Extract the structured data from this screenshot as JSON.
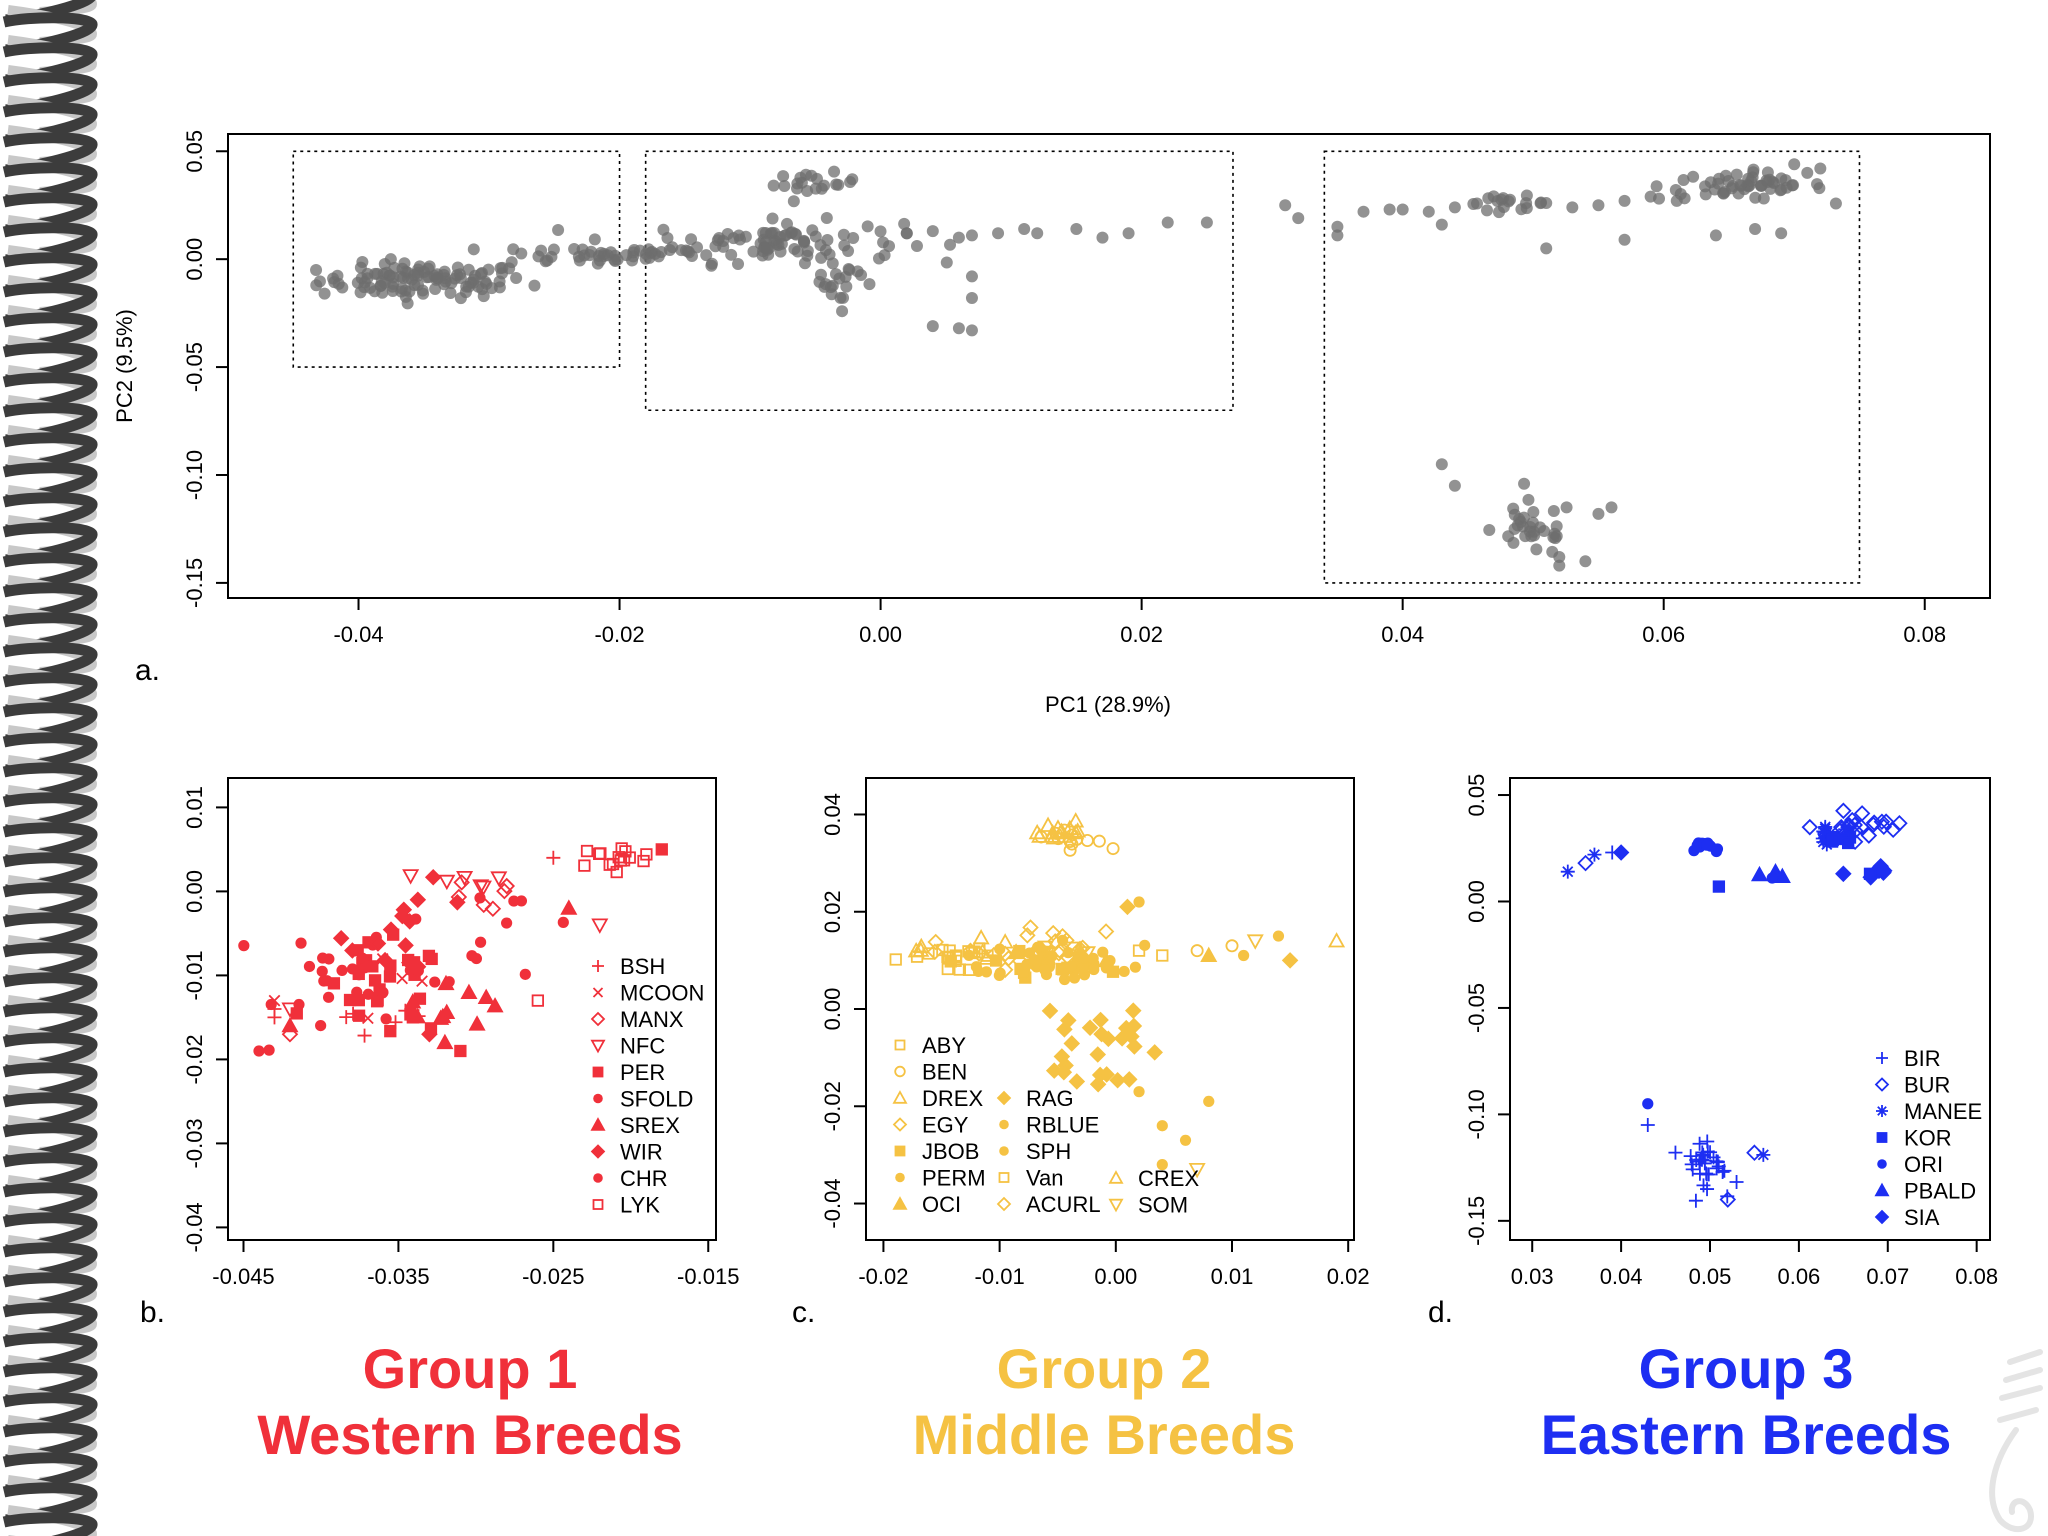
{
  "colors": {
    "grey": "#6e6e6e",
    "red": "#f0303a",
    "yellow": "#f5c243",
    "blue": "#1d2ef2",
    "helix_dark": "#3c3c3c",
    "helix_light": "#c8c8c8"
  },
  "chart_data": [
    {
      "id": "a",
      "type": "scatter",
      "panel_label": "a.",
      "xlabel": "PC1 (28.9%)",
      "ylabel": "PC2 (9.5%)",
      "xlim": [
        -0.05,
        0.085
      ],
      "ylim": [
        -0.157,
        0.058
      ],
      "xticks": [
        "-0.04",
        "-0.02",
        "0.00",
        "0.02",
        "0.04",
        "0.06",
        "0.08"
      ],
      "yticks": [
        "0.05",
        "0.00",
        "-0.05",
        "-0.10",
        "-0.15"
      ],
      "dotted_boxes": [
        {
          "x": [
            -0.045,
            -0.02
          ],
          "y": [
            -0.05,
            0.05
          ]
        },
        {
          "x": [
            -0.018,
            0.027
          ],
          "y": [
            -0.07,
            0.05
          ]
        },
        {
          "x": [
            0.034,
            0.075
          ],
          "y": [
            -0.15,
            0.05
          ]
        }
      ],
      "clusters": [
        {
          "center": [
            -0.035,
            -0.01
          ],
          "spread": [
            0.005,
            0.005
          ],
          "n": 110
        },
        {
          "center": [
            -0.022,
            0.002
          ],
          "spread": [
            0.005,
            0.003
          ],
          "n": 45
        },
        {
          "center": [
            -0.008,
            0.008
          ],
          "spread": [
            0.006,
            0.006
          ],
          "n": 90
        },
        {
          "center": [
            -0.005,
            0.035
          ],
          "spread": [
            0.002,
            0.003
          ],
          "n": 20
        },
        {
          "center": [
            -0.003,
            -0.01
          ],
          "spread": [
            0.002,
            0.008
          ],
          "n": 20
        },
        {
          "center": [
            0.048,
            0.026
          ],
          "spread": [
            0.002,
            0.002
          ],
          "n": 18
        },
        {
          "center": [
            0.066,
            0.034
          ],
          "spread": [
            0.004,
            0.004
          ],
          "n": 55
        },
        {
          "center": [
            0.05,
            -0.125
          ],
          "spread": [
            0.002,
            0.008
          ],
          "n": 32
        }
      ],
      "points": [
        [
          0.002,
          0.012
        ],
        [
          0.004,
          0.013
        ],
        [
          0.006,
          0.01
        ],
        [
          0.007,
          0.011
        ],
        [
          0.009,
          0.012
        ],
        [
          0.011,
          0.014
        ],
        [
          0.012,
          0.012
        ],
        [
          0.015,
          0.014
        ],
        [
          0.017,
          0.01
        ],
        [
          0.019,
          0.012
        ],
        [
          0.022,
          0.017
        ],
        [
          0.025,
          0.017
        ],
        [
          0.031,
          0.025
        ],
        [
          0.032,
          0.019
        ],
        [
          0.035,
          0.015
        ],
        [
          0.037,
          0.022
        ],
        [
          0.039,
          0.023
        ],
        [
          0.04,
          0.023
        ],
        [
          0.042,
          0.022
        ],
        [
          0.044,
          0.024
        ],
        [
          0.051,
          0.026
        ],
        [
          0.053,
          0.024
        ],
        [
          0.055,
          0.025
        ],
        [
          0.057,
          0.027
        ],
        [
          0.059,
          0.029
        ],
        [
          0.061,
          0.027
        ],
        [
          0.035,
          0.011
        ],
        [
          0.043,
          0.016
        ],
        [
          0.051,
          0.005
        ],
        [
          0.057,
          0.009
        ],
        [
          0.064,
          0.011
        ],
        [
          0.067,
          0.014
        ],
        [
          0.069,
          0.012
        ],
        [
          0.007,
          -0.008
        ],
        [
          0.007,
          -0.018
        ],
        [
          0.007,
          -0.033
        ],
        [
          0.004,
          -0.031
        ],
        [
          0.006,
          -0.032
        ],
        [
          0.043,
          -0.095
        ],
        [
          0.044,
          -0.105
        ],
        [
          0.052,
          -0.138
        ],
        [
          0.052,
          -0.142
        ],
        [
          0.054,
          -0.14
        ],
        [
          0.055,
          -0.118
        ],
        [
          0.056,
          -0.115
        ],
        [
          0.071,
          0.04
        ],
        [
          0.072,
          0.042
        ],
        [
          0.07,
          0.044
        ]
      ]
    },
    {
      "id": "b",
      "type": "scatter",
      "panel_label": "b.",
      "xlim": [
        -0.046,
        -0.0145
      ],
      "ylim": [
        -0.0415,
        0.0135
      ],
      "xticks": [
        "-0.045",
        "-0.035",
        "-0.025",
        "-0.015"
      ],
      "yticks": [
        "0.01",
        "0.00",
        "-0.01",
        "-0.02",
        "-0.03",
        "-0.04"
      ],
      "legend": [
        "BSH",
        "MCOON",
        "MANX",
        "NFC",
        "PER",
        "SFOLD",
        "SREX",
        "WIR",
        "CHR",
        "LYK"
      ],
      "series": [
        {
          "name": "BSH",
          "marker": "plus",
          "center": [
            -0.037,
            -0.016
          ],
          "spread": [
            0.003,
            0.002
          ],
          "n": 6
        },
        {
          "name": "MCOON",
          "marker": "x",
          "center": [
            -0.035,
            -0.012
          ],
          "spread": [
            0.003,
            0.003
          ],
          "n": 5
        },
        {
          "name": "MANX",
          "marker": "diamond-open",
          "center": [
            -0.029,
            -0.001
          ],
          "spread": [
            0.002,
            0.002
          ],
          "n": 6
        },
        {
          "name": "NFC",
          "marker": "tri-down-open",
          "center": [
            -0.032,
            0.001
          ],
          "spread": [
            0.004,
            0.002
          ],
          "n": 6
        },
        {
          "name": "PER",
          "marker": "square",
          "center": [
            -0.036,
            -0.012
          ],
          "spread": [
            0.003,
            0.004
          ],
          "n": 28
        },
        {
          "name": "SFOLD",
          "marker": "circle",
          "center": [
            -0.037,
            -0.01
          ],
          "spread": [
            0.004,
            0.005
          ],
          "n": 30
        },
        {
          "name": "SREX",
          "marker": "triangle",
          "center": [
            -0.032,
            -0.012
          ],
          "spread": [
            0.003,
            0.003
          ],
          "n": 10
        },
        {
          "name": "WIR",
          "marker": "diamond",
          "center": [
            -0.034,
            -0.005
          ],
          "spread": [
            0.003,
            0.004
          ],
          "n": 14
        },
        {
          "name": "CHR",
          "marker": "circle",
          "center": [
            -0.028,
            -0.005
          ],
          "spread": [
            0.004,
            0.004
          ],
          "n": 10
        },
        {
          "name": "LYK",
          "marker": "square-open",
          "center": [
            -0.021,
            0.004
          ],
          "spread": [
            0.002,
            0.001
          ],
          "n": 15
        }
      ],
      "points": [
        [
          -0.044,
          -0.019
        ],
        [
          -0.043,
          -0.015
        ],
        [
          -0.043,
          -0.014
        ],
        [
          -0.042,
          -0.014
        ],
        [
          -0.042,
          -0.016
        ],
        [
          -0.043,
          -0.013
        ],
        [
          -0.042,
          -0.017
        ],
        [
          -0.026,
          -0.013
        ],
        [
          -0.022,
          -0.004
        ],
        [
          -0.024,
          -0.002
        ],
        [
          -0.025,
          0.004
        ],
        [
          -0.018,
          0.005
        ],
        [
          -0.031,
          -0.019
        ],
        [
          -0.032,
          -0.018
        ],
        [
          -0.033,
          -0.017
        ]
      ]
    },
    {
      "id": "c",
      "type": "scatter",
      "panel_label": "c.",
      "xlim": [
        -0.0215,
        0.0205
      ],
      "ylim": [
        -0.0475,
        0.0475
      ],
      "xticks": [
        "-0.02",
        "-0.01",
        "0.00",
        "0.01",
        "0.02"
      ],
      "yticks": [
        "0.04",
        "0.02",
        "0.00",
        "-0.02",
        "-0.04"
      ],
      "legend_col1": [
        "ABY",
        "BEN",
        "DREX",
        "EGY",
        "JBOB",
        "PERM",
        "OCI"
      ],
      "legend_col2": [
        "RAG",
        "RBLUE",
        "SPH",
        "Van",
        "ACURL"
      ],
      "legend_col3": [
        "CREX",
        "SOM"
      ],
      "series": [
        {
          "name": "ABY",
          "marker": "square-open",
          "center": [
            -0.014,
            0.011
          ],
          "spread": [
            0.004,
            0.002
          ],
          "n": 10
        },
        {
          "name": "BEN",
          "marker": "circle-open",
          "center": [
            -0.004,
            0.035
          ],
          "spread": [
            0.002,
            0.002
          ],
          "n": 12
        },
        {
          "name": "DREX",
          "marker": "triangle-open",
          "center": [
            -0.005,
            0.036
          ],
          "spread": [
            0.002,
            0.002
          ],
          "n": 14
        },
        {
          "name": "EGY",
          "marker": "diamond-open",
          "center": [
            -0.01,
            0.011
          ],
          "spread": [
            0.004,
            0.002
          ],
          "n": 12
        },
        {
          "name": "JBOB",
          "marker": "square",
          "center": [
            -0.008,
            0.009
          ],
          "spread": [
            0.005,
            0.002
          ],
          "n": 10
        },
        {
          "name": "PERM",
          "marker": "circle",
          "center": [
            -0.006,
            0.01
          ],
          "spread": [
            0.005,
            0.003
          ],
          "n": 16
        },
        {
          "name": "OCI",
          "marker": "triangle",
          "center": [
            -0.003,
            0.011
          ],
          "spread": [
            0.004,
            0.002
          ],
          "n": 8
        },
        {
          "name": "RAG",
          "marker": "diamond",
          "center": [
            -0.002,
            -0.008
          ],
          "spread": [
            0.003,
            0.007
          ],
          "n": 26
        },
        {
          "name": "RBLUE",
          "marker": "circle",
          "center": [
            -0.004,
            0.01
          ],
          "spread": [
            0.004,
            0.003
          ],
          "n": 16
        },
        {
          "name": "SPH",
          "marker": "circle",
          "center": [
            -0.008,
            0.009
          ],
          "spread": [
            0.005,
            0.002
          ],
          "n": 14
        },
        {
          "name": "Van",
          "marker": "square-open",
          "center": [
            -0.012,
            0.01
          ],
          "spread": [
            0.003,
            0.002
          ],
          "n": 8
        },
        {
          "name": "ACURL",
          "marker": "diamond-open",
          "center": [
            -0.006,
            0.013
          ],
          "spread": [
            0.004,
            0.003
          ],
          "n": 10
        },
        {
          "name": "CREX",
          "marker": "triangle-open",
          "center": [
            -0.013,
            0.012
          ],
          "spread": [
            0.003,
            0.002
          ],
          "n": 8
        },
        {
          "name": "SOM",
          "marker": "tri-down-open",
          "center": [
            -0.006,
            0.012
          ],
          "spread": [
            0.004,
            0.002
          ],
          "n": 8
        }
      ],
      "points": [
        [
          0.001,
          0.021
        ],
        [
          0.002,
          0.022
        ],
        [
          0.002,
          0.012
        ],
        [
          0.004,
          0.011
        ],
        [
          0.007,
          0.012
        ],
        [
          0.008,
          0.011
        ],
        [
          0.01,
          0.013
        ],
        [
          0.011,
          0.011
        ],
        [
          0.012,
          0.014
        ],
        [
          0.015,
          0.01
        ],
        [
          0.014,
          0.015
        ],
        [
          0.019,
          0.014
        ],
        [
          0.002,
          -0.017
        ],
        [
          0.004,
          -0.024
        ],
        [
          0.006,
          -0.027
        ],
        [
          0.004,
          -0.032
        ],
        [
          0.007,
          -0.033
        ],
        [
          0.008,
          -0.019
        ]
      ]
    },
    {
      "id": "d",
      "type": "scatter",
      "panel_label": "d.",
      "xlim": [
        0.0275,
        0.0815
      ],
      "ylim": [
        -0.159,
        0.058
      ],
      "xticks": [
        "0.03",
        "0.04",
        "0.05",
        "0.06",
        "0.07",
        "0.08"
      ],
      "yticks": [
        "0.05",
        "0.00",
        "-0.05",
        "-0.10",
        "-0.15"
      ],
      "legend": [
        "BIR",
        "BUR",
        "MANEE",
        "KOR",
        "ORI",
        "PBALD",
        "SIA"
      ],
      "series": [
        {
          "name": "BIR",
          "marker": "plus",
          "center": [
            0.05,
            -0.124
          ],
          "spread": [
            0.002,
            0.007
          ],
          "n": 34
        },
        {
          "name": "BUR",
          "marker": "diamond-open",
          "center": [
            0.067,
            0.036
          ],
          "spread": [
            0.003,
            0.004
          ],
          "n": 24
        },
        {
          "name": "MANEE",
          "marker": "asterisk",
          "center": [
            0.062,
            0.031
          ],
          "spread": [
            0.003,
            0.003
          ],
          "n": 10
        },
        {
          "name": "KOR",
          "marker": "square",
          "center": [
            0.064,
            0.03
          ],
          "spread": [
            0.002,
            0.002
          ],
          "n": 6
        },
        {
          "name": "ORI",
          "marker": "circle",
          "center": [
            0.049,
            0.026
          ],
          "spread": [
            0.002,
            0.002
          ],
          "n": 12
        },
        {
          "name": "PBALD",
          "marker": "triangle",
          "center": [
            0.059,
            0.012
          ],
          "spread": [
            0.006,
            0.002
          ],
          "n": 3
        },
        {
          "name": "SIA",
          "marker": "diamond",
          "center": [
            0.069,
            0.014
          ],
          "spread": [
            0.001,
            0.002
          ],
          "n": 6
        }
      ],
      "points": [
        [
          0.034,
          0.014
        ],
        [
          0.036,
          0.018
        ],
        [
          0.037,
          0.022
        ],
        [
          0.039,
          0.023
        ],
        [
          0.04,
          0.023
        ],
        [
          0.043,
          -0.095
        ],
        [
          0.043,
          -0.105
        ],
        [
          0.052,
          -0.14
        ],
        [
          0.055,
          -0.118
        ],
        [
          0.056,
          -0.119
        ],
        [
          0.051,
          0.007
        ],
        [
          0.057,
          0.011
        ],
        [
          0.065,
          0.013
        ],
        [
          0.069,
          0.014
        ],
        [
          0.068,
          0.013
        ]
      ]
    }
  ],
  "groups": [
    {
      "line1": "Group 1",
      "line2": "Western Breeds"
    },
    {
      "line1": "Group 2",
      "line2": "Middle Breeds"
    },
    {
      "line1": "Group 3",
      "line2": "Eastern Breeds"
    }
  ]
}
